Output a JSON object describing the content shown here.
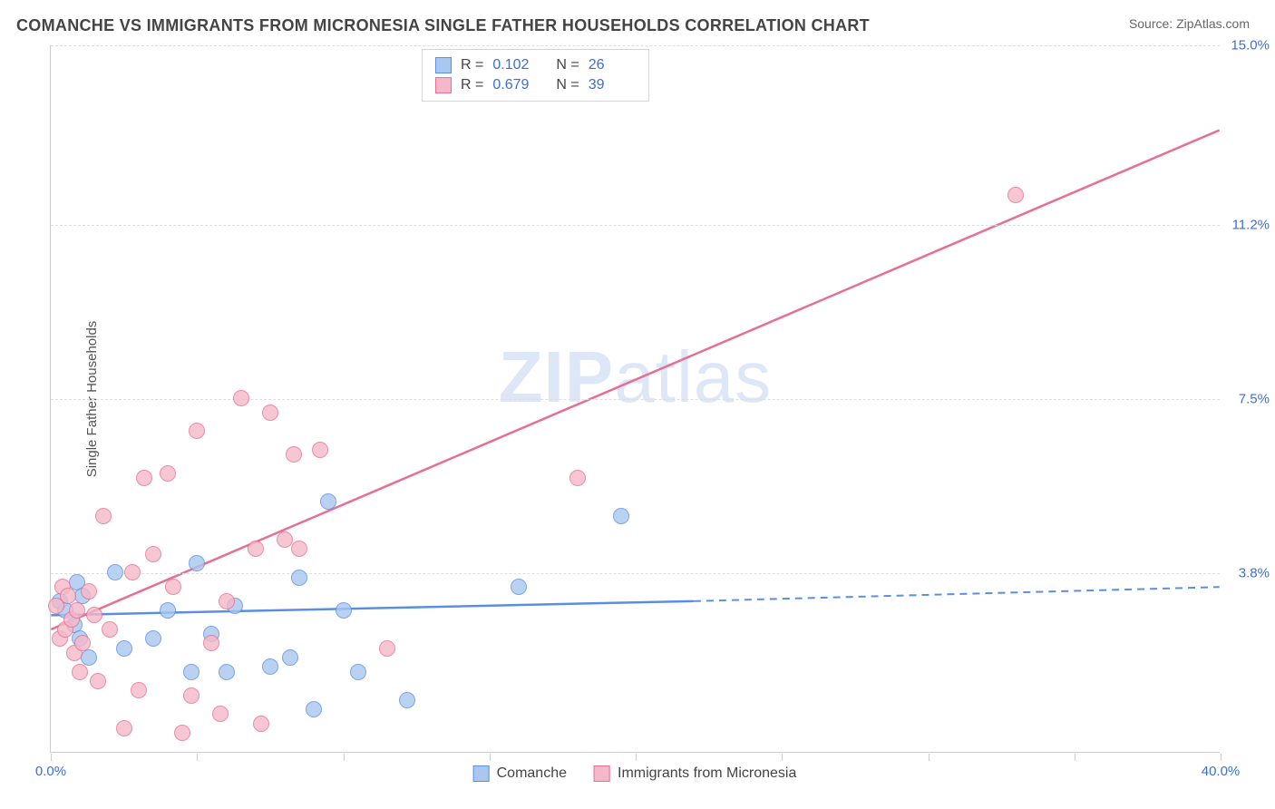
{
  "header": {
    "title": "COMANCHE VS IMMIGRANTS FROM MICRONESIA SINGLE FATHER HOUSEHOLDS CORRELATION CHART",
    "source": "Source: ZipAtlas.com"
  },
  "chart": {
    "type": "scatter",
    "y_axis_title": "Single Father Households",
    "watermark_prefix": "ZIP",
    "watermark_suffix": "atlas",
    "xlim": [
      0,
      40
    ],
    "ylim": [
      0,
      15
    ],
    "x_ticks": [
      0,
      5,
      10,
      15,
      20,
      25,
      30,
      35,
      40
    ],
    "x_labels": {
      "0": "0.0%",
      "40": "40.0%"
    },
    "y_grid": [
      3.8,
      7.5,
      11.2,
      15.0
    ],
    "y_labels": [
      "3.8%",
      "7.5%",
      "11.2%",
      "15.0%"
    ],
    "background_color": "#ffffff",
    "grid_color": "#dddddd",
    "axis_color": "#cccccc",
    "series": [
      {
        "name": "Comanche",
        "legend_label": "Comanche",
        "fill": "#a9c7ef",
        "stroke": "#5a8fe0",
        "r_value": "0.102",
        "n_value": "26",
        "marker_radius": 9,
        "regression": {
          "x1": 0,
          "y1": 2.9,
          "x2": 22,
          "y2": 3.2,
          "x2_dashed": 40,
          "y2_dashed": 3.5
        },
        "points": [
          [
            0.3,
            3.2
          ],
          [
            0.5,
            3.0
          ],
          [
            0.8,
            2.7
          ],
          [
            0.9,
            3.6
          ],
          [
            1.0,
            2.4
          ],
          [
            1.1,
            3.3
          ],
          [
            1.3,
            2.0
          ],
          [
            2.2,
            3.8
          ],
          [
            2.5,
            2.2
          ],
          [
            3.5,
            2.4
          ],
          [
            4.0,
            3.0
          ],
          [
            4.8,
            1.7
          ],
          [
            5.0,
            4.0
          ],
          [
            5.5,
            2.5
          ],
          [
            6.0,
            1.7
          ],
          [
            6.3,
            3.1
          ],
          [
            7.5,
            1.8
          ],
          [
            8.2,
            2.0
          ],
          [
            8.5,
            3.7
          ],
          [
            9.0,
            0.9
          ],
          [
            9.5,
            5.3
          ],
          [
            10.0,
            3.0
          ],
          [
            10.5,
            1.7
          ],
          [
            12.2,
            1.1
          ],
          [
            16.0,
            3.5
          ],
          [
            19.5,
            5.0
          ]
        ]
      },
      {
        "name": "Immigrants from Micronesia",
        "legend_label": "Immigrants from Micronesia",
        "fill": "#f5b8c9",
        "stroke": "#e76f93",
        "r_value": "0.679",
        "n_value": "39",
        "marker_radius": 9,
        "regression": {
          "x1": 0,
          "y1": 2.6,
          "x2": 40,
          "y2": 13.2,
          "x2_dashed": 40,
          "y2_dashed": 13.2
        },
        "points": [
          [
            0.2,
            3.1
          ],
          [
            0.3,
            2.4
          ],
          [
            0.4,
            3.5
          ],
          [
            0.5,
            2.6
          ],
          [
            0.6,
            3.3
          ],
          [
            0.7,
            2.8
          ],
          [
            0.8,
            2.1
          ],
          [
            0.9,
            3.0
          ],
          [
            1.0,
            1.7
          ],
          [
            1.1,
            2.3
          ],
          [
            1.3,
            3.4
          ],
          [
            1.5,
            2.9
          ],
          [
            1.6,
            1.5
          ],
          [
            1.8,
            5.0
          ],
          [
            2.0,
            2.6
          ],
          [
            2.5,
            0.5
          ],
          [
            2.8,
            3.8
          ],
          [
            3.0,
            1.3
          ],
          [
            3.2,
            5.8
          ],
          [
            3.5,
            4.2
          ],
          [
            4.0,
            5.9
          ],
          [
            4.2,
            3.5
          ],
          [
            4.5,
            0.4
          ],
          [
            4.8,
            1.2
          ],
          [
            5.0,
            6.8
          ],
          [
            5.5,
            2.3
          ],
          [
            5.8,
            0.8
          ],
          [
            6.0,
            3.2
          ],
          [
            6.5,
            7.5
          ],
          [
            7.0,
            4.3
          ],
          [
            7.2,
            0.6
          ],
          [
            7.5,
            7.2
          ],
          [
            8.0,
            4.5
          ],
          [
            8.3,
            6.3
          ],
          [
            8.5,
            4.3
          ],
          [
            9.2,
            6.4
          ],
          [
            11.5,
            2.2
          ],
          [
            18.0,
            5.8
          ],
          [
            33.0,
            11.8
          ]
        ]
      }
    ],
    "stats_labels": {
      "r": "R  =",
      "n": "N  ="
    }
  }
}
